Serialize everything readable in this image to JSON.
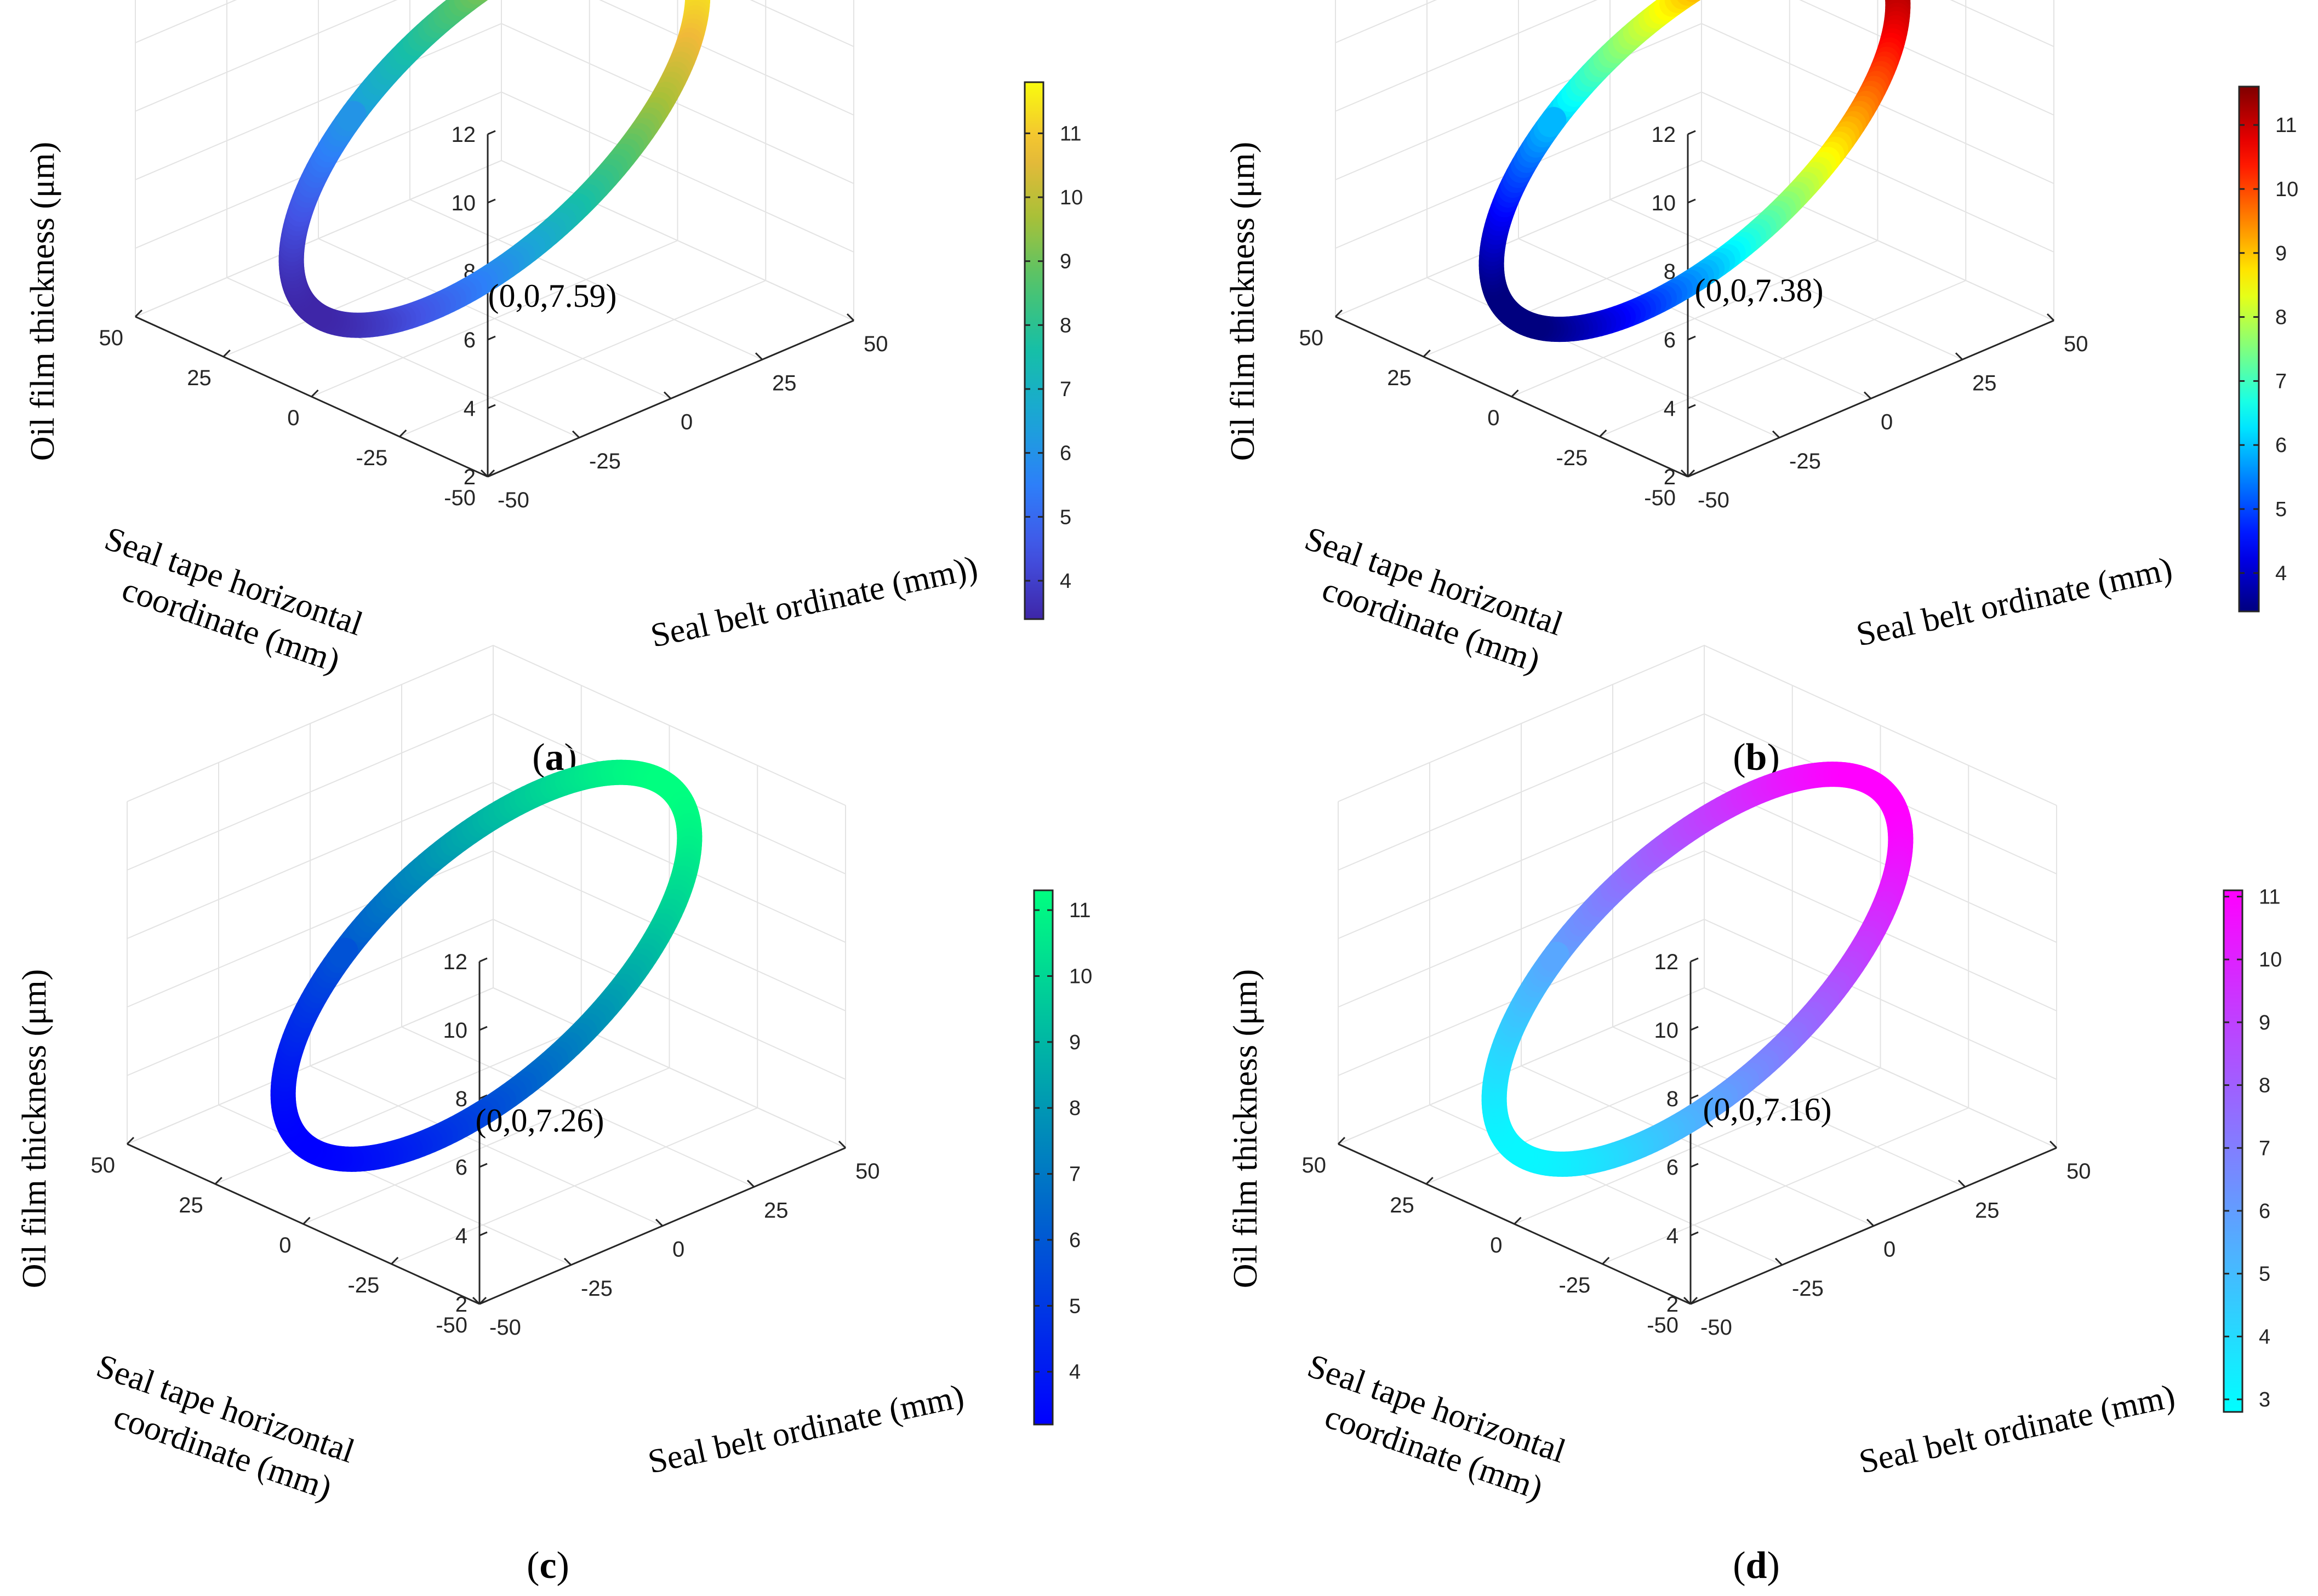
{
  "chart_data": [
    {
      "type": "scatter3d",
      "panel": "a",
      "caption_open": "(",
      "caption_letter": "a",
      "caption_close": ")",
      "xlabel_line1": "Seal tape horizontal",
      "xlabel_line2": "coordinate (mm)",
      "ylabel": "Seal belt ordinate (mm))",
      "zlabel": "Oil film thickness (μm)",
      "annotation": "(0,0,7.59)",
      "center": [
        0,
        0,
        7.59
      ],
      "radius_mm": 40,
      "xlim": [
        -50,
        50
      ],
      "ylim": [
        -50,
        50
      ],
      "zlim": [
        2,
        12
      ],
      "xticks": [
        50,
        25,
        0,
        -25,
        -50
      ],
      "yticks": [
        -50,
        -25,
        0,
        25,
        50
      ],
      "zticks": [
        2,
        4,
        6,
        8,
        10,
        12
      ],
      "colormap": "parula",
      "clim": [
        3.4,
        11.8
      ],
      "cbticks": [
        4,
        5,
        6,
        7,
        8,
        9,
        10,
        11
      ],
      "value_range": [
        3.4,
        11.8
      ]
    },
    {
      "type": "scatter3d",
      "panel": "b",
      "caption_open": "(",
      "caption_letter": "b",
      "caption_close": ")",
      "xlabel_line1": "Seal tape horizontal",
      "xlabel_line2": "coordinate (mm)",
      "ylabel": "Seal belt ordinate (mm)",
      "zlabel": "Oil film thickness (μm)",
      "annotation": "(0,0,7.38)",
      "center": [
        0,
        0,
        7.38
      ],
      "radius_mm": 40,
      "xlim": [
        -50,
        50
      ],
      "ylim": [
        -50,
        50
      ],
      "zlim": [
        2,
        12
      ],
      "xticks": [
        50,
        25,
        0,
        -25,
        -50
      ],
      "yticks": [
        -50,
        -25,
        0,
        25,
        50
      ],
      "zticks": [
        2,
        4,
        6,
        8,
        10,
        12
      ],
      "colormap": "jet",
      "clim": [
        3.4,
        11.6
      ],
      "cbticks": [
        4,
        5,
        6,
        7,
        8,
        9,
        10,
        11
      ],
      "value_range": [
        3.4,
        11.6
      ]
    },
    {
      "type": "scatter3d",
      "panel": "c",
      "caption_open": "(",
      "caption_letter": "c",
      "caption_close": ")",
      "xlabel_line1": "Seal tape horizontal",
      "xlabel_line2": "coordinate (mm)",
      "ylabel": "Seal belt ordinate (mm)",
      "zlabel": "Oil film thickness (μm)",
      "annotation": "(0,0,7.26)",
      "center": [
        0,
        0,
        7.26
      ],
      "radius_mm": 40,
      "xlim": [
        -50,
        50
      ],
      "ylim": [
        -50,
        50
      ],
      "zlim": [
        2,
        12
      ],
      "xticks": [
        50,
        25,
        0,
        -25,
        -50
      ],
      "yticks": [
        -50,
        -25,
        0,
        25,
        50
      ],
      "zticks": [
        2,
        4,
        6,
        8,
        10,
        12
      ],
      "colormap": "winter",
      "clim": [
        3.2,
        11.3
      ],
      "cbticks": [
        4,
        5,
        6,
        7,
        8,
        9,
        10,
        11
      ],
      "value_range": [
        3.2,
        11.3
      ]
    },
    {
      "type": "scatter3d",
      "panel": "d",
      "caption_open": "(",
      "caption_letter": "d",
      "caption_close": ")",
      "xlabel_line1": "Seal tape horizontal",
      "xlabel_line2": "coordinate (mm)",
      "ylabel": "Seal belt ordinate (mm)",
      "zlabel": "Oil film thickness (μm)",
      "annotation": "(0,0,7.16)",
      "center": [
        0,
        0,
        7.16
      ],
      "radius_mm": 40,
      "xlim": [
        -50,
        50
      ],
      "ylim": [
        -50,
        50
      ],
      "zlim": [
        2,
        12
      ],
      "xticks": [
        50,
        25,
        0,
        -25,
        -50
      ],
      "yticks": [
        -50,
        -25,
        0,
        25,
        50
      ],
      "zticks": [
        2,
        4,
        6,
        8,
        10,
        12
      ],
      "colormap": "cool",
      "clim": [
        2.8,
        11.1
      ],
      "cbticks": [
        3,
        4,
        5,
        6,
        7,
        8,
        9,
        10,
        11
      ],
      "value_range": [
        2.9,
        11.1
      ]
    }
  ]
}
